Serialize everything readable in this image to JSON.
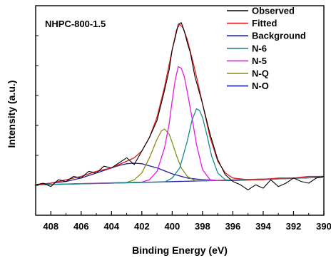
{
  "chart_data": {
    "type": "line",
    "title": "NHPC-800-1.5",
    "xlabel": "Binding Energy (eV)",
    "ylabel": "Intensity (a.u.)",
    "xlim": [
      409,
      390
    ],
    "ylim": [
      -0.18,
      1.06
    ],
    "x_reversed": true,
    "y_ticks_labeled": false,
    "x_ticks": [
      408,
      406,
      404,
      402,
      400,
      398,
      396,
      394,
      392,
      390
    ],
    "x_tick_labels": [
      "408",
      "406",
      "404",
      "402",
      "400",
      "398",
      "396",
      "394",
      "392",
      "390"
    ],
    "grid": false,
    "legend_position": "top-right",
    "series": [
      {
        "name": "Observed",
        "color": "#000000",
        "x": [
          409.0,
          408.5,
          408.0,
          407.5,
          407.0,
          406.5,
          406.0,
          405.5,
          405.0,
          404.5,
          404.0,
          403.5,
          403.0,
          402.5,
          402.0,
          401.5,
          401.0,
          400.5,
          400.2,
          400.0,
          399.8,
          399.6,
          399.4,
          399.2,
          399.0,
          398.8,
          398.5,
          398.0,
          397.5,
          397.0,
          396.5,
          396.0,
          395.5,
          395.0,
          394.5,
          394.0,
          393.5,
          393.0,
          392.5,
          392.0,
          391.5,
          391.0,
          390.5,
          390.0
        ],
        "y": [
          0.0,
          0.01,
          -0.01,
          0.03,
          0.02,
          0.05,
          0.04,
          0.08,
          0.07,
          0.11,
          0.1,
          0.13,
          0.16,
          0.12,
          0.2,
          0.28,
          0.38,
          0.56,
          0.68,
          0.8,
          0.87,
          0.95,
          0.96,
          0.91,
          0.84,
          0.78,
          0.64,
          0.48,
          0.3,
          0.15,
          0.06,
          0.02,
          0.0,
          -0.03,
          0.0,
          -0.02,
          0.03,
          -0.01,
          0.01,
          0.04,
          0.02,
          0.01,
          0.04,
          0.05
        ]
      },
      {
        "name": "Fitted",
        "color": "#e41a1c",
        "x": [
          409.0,
          408.0,
          407.0,
          406.0,
          405.0,
          404.0,
          403.5,
          403.0,
          402.5,
          402.0,
          401.5,
          401.0,
          400.5,
          400.0,
          399.7,
          399.5,
          399.3,
          399.0,
          398.5,
          398.0,
          397.5,
          397.0,
          396.5,
          396.0,
          395.0,
          394.0,
          393.0,
          392.0,
          391.0,
          390.0
        ],
        "y": [
          0.0,
          0.01,
          0.03,
          0.05,
          0.08,
          0.1,
          0.12,
          0.14,
          0.16,
          0.2,
          0.28,
          0.4,
          0.58,
          0.8,
          0.92,
          0.95,
          0.93,
          0.86,
          0.68,
          0.48,
          0.28,
          0.14,
          0.07,
          0.04,
          0.03,
          0.03,
          0.04,
          0.04,
          0.05,
          0.05
        ]
      },
      {
        "name": "Background",
        "color": "#1f1fa0",
        "x": [
          409.0,
          406.0,
          403.0,
          400.0,
          397.0,
          394.0,
          391.0,
          390.0
        ],
        "y": [
          0.0,
          0.006,
          0.012,
          0.019,
          0.026,
          0.034,
          0.042,
          0.045
        ]
      },
      {
        "name": "N-6",
        "color": "#1a8c8c",
        "x": [
          409.0,
          400.5,
          400.0,
          399.5,
          399.0,
          398.7,
          398.4,
          398.2,
          398.0,
          397.7,
          397.4,
          397.0,
          396.5,
          396.0,
          390.0
        ],
        "y": [
          0.0,
          0.017,
          0.04,
          0.1,
          0.26,
          0.38,
          0.45,
          0.44,
          0.4,
          0.29,
          0.17,
          0.07,
          0.03,
          0.026,
          0.045
        ]
      },
      {
        "name": "N-5",
        "color": "#e619e6",
        "x": [
          409.0,
          402.0,
          401.5,
          401.0,
          400.5,
          400.2,
          400.0,
          399.8,
          399.6,
          399.4,
          399.2,
          399.0,
          398.7,
          398.4,
          398.0,
          397.5,
          397.0,
          390.0
        ],
        "y": [
          0.0,
          0.016,
          0.03,
          0.08,
          0.22,
          0.36,
          0.5,
          0.62,
          0.7,
          0.69,
          0.64,
          0.55,
          0.4,
          0.24,
          0.09,
          0.03,
          0.025,
          0.045
        ]
      },
      {
        "name": "N-Q",
        "color": "#8c8c1a",
        "x": [
          409.0,
          403.0,
          402.5,
          402.0,
          401.5,
          401.0,
          400.7,
          400.5,
          400.2,
          400.0,
          399.7,
          399.4,
          399.0,
          398.5,
          398.0,
          390.0
        ],
        "y": [
          0.0,
          0.014,
          0.03,
          0.07,
          0.16,
          0.27,
          0.32,
          0.33,
          0.3,
          0.25,
          0.17,
          0.1,
          0.05,
          0.025,
          0.024,
          0.045
        ]
      },
      {
        "name": "N-O",
        "color": "#1f1fa0",
        "x": [
          409.0,
          407.0,
          406.0,
          405.0,
          404.0,
          403.5,
          403.0,
          402.5,
          402.0,
          401.0,
          400.0,
          399.0,
          398.0,
          397.0,
          396.0,
          390.0
        ],
        "y": [
          0.0,
          0.02,
          0.04,
          0.07,
          0.1,
          0.115,
          0.125,
          0.128,
          0.125,
          0.1,
          0.065,
          0.04,
          0.03,
          0.026,
          0.025,
          0.045
        ]
      }
    ]
  }
}
